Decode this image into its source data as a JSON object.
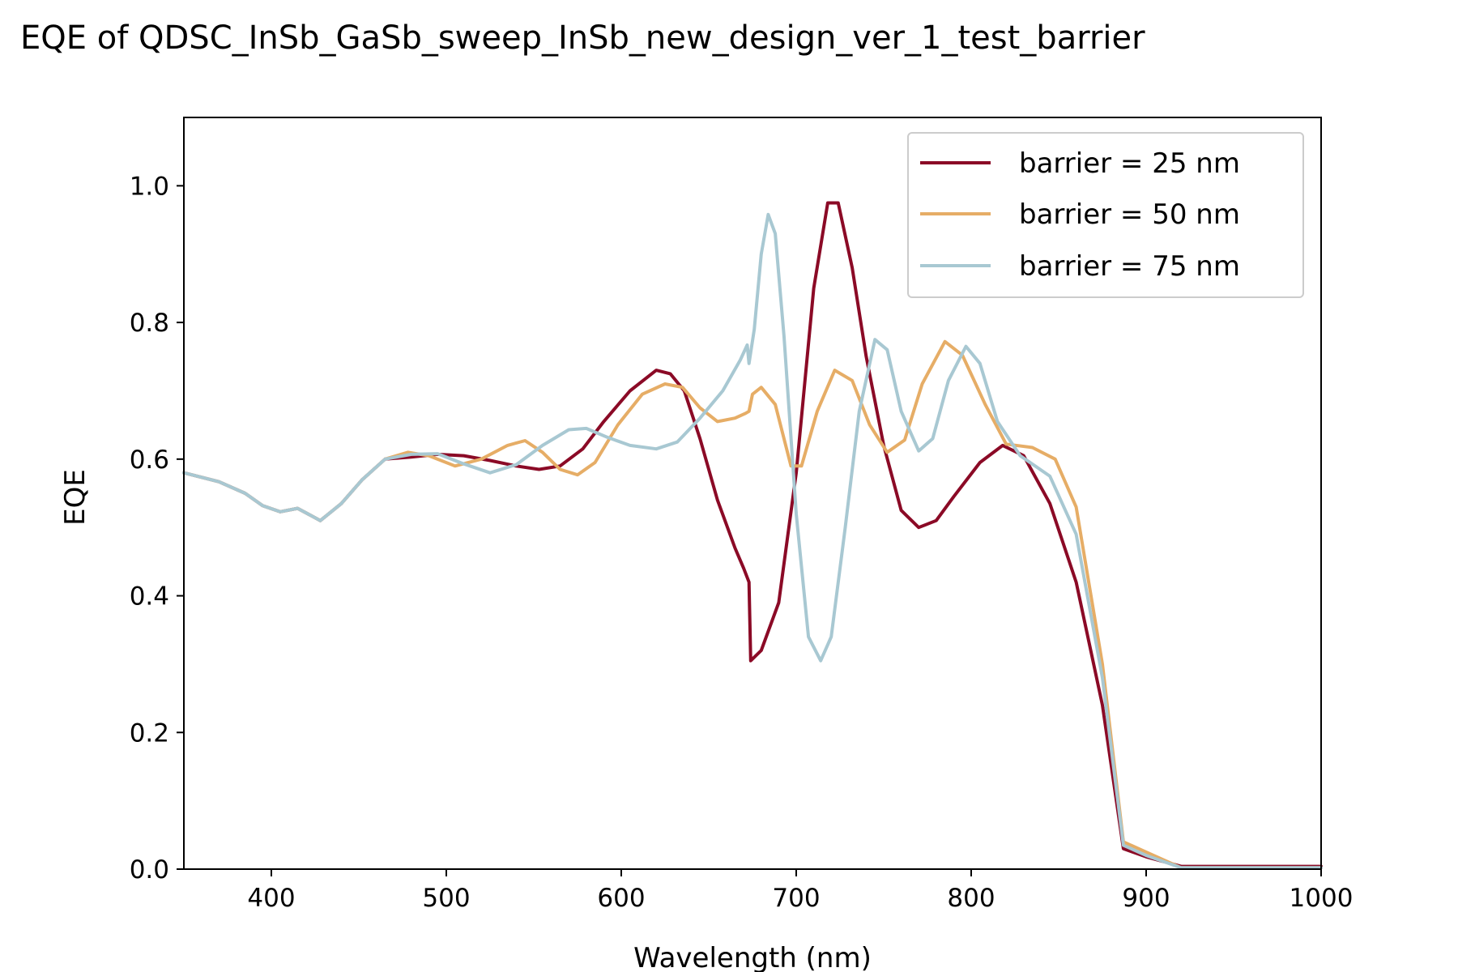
{
  "chart_data": {
    "type": "line",
    "title": "EQE of  QDSC_InSb_GaSb_sweep_InSb_new_design_ver_1_test_barrier",
    "xlabel": "Wavelength (nm)",
    "ylabel": "EQE",
    "xlim": [
      350,
      1000
    ],
    "ylim": [
      0,
      1.1
    ],
    "xticks": [
      400,
      500,
      600,
      700,
      800,
      900,
      1000
    ],
    "xtick_labels": [
      "400",
      "500",
      "600",
      "700",
      "800",
      "900",
      "1000"
    ],
    "yticks": [
      0,
      0.2,
      0.4,
      0.6,
      0.8,
      1.0
    ],
    "ytick_labels": [
      "0.0",
      "0.2",
      "0.4",
      "0.6",
      "0.8",
      "1.0"
    ],
    "grid": false,
    "legend_position": "top-right",
    "series": [
      {
        "name": "barrier = 25 nm",
        "color": "#8b0a26",
        "points": [
          [
            350,
            0.58
          ],
          [
            370,
            0.567
          ],
          [
            385,
            0.55
          ],
          [
            395,
            0.532
          ],
          [
            405,
            0.523
          ],
          [
            415,
            0.528
          ],
          [
            428,
            0.51
          ],
          [
            440,
            0.535
          ],
          [
            452,
            0.57
          ],
          [
            465,
            0.6
          ],
          [
            480,
            0.603
          ],
          [
            495,
            0.607
          ],
          [
            510,
            0.605
          ],
          [
            525,
            0.598
          ],
          [
            540,
            0.59
          ],
          [
            553,
            0.585
          ],
          [
            565,
            0.59
          ],
          [
            578,
            0.615
          ],
          [
            590,
            0.655
          ],
          [
            605,
            0.7
          ],
          [
            620,
            0.73
          ],
          [
            628,
            0.725
          ],
          [
            636,
            0.7
          ],
          [
            645,
            0.63
          ],
          [
            655,
            0.54
          ],
          [
            665,
            0.47
          ],
          [
            670,
            0.44
          ],
          [
            673,
            0.42
          ],
          [
            674,
            0.305
          ],
          [
            680,
            0.32
          ],
          [
            690,
            0.39
          ],
          [
            700,
            0.58
          ],
          [
            710,
            0.85
          ],
          [
            718,
            0.975
          ],
          [
            724,
            0.975
          ],
          [
            732,
            0.88
          ],
          [
            740,
            0.75
          ],
          [
            750,
            0.62
          ],
          [
            760,
            0.525
          ],
          [
            770,
            0.5
          ],
          [
            780,
            0.51
          ],
          [
            790,
            0.545
          ],
          [
            805,
            0.595
          ],
          [
            818,
            0.62
          ],
          [
            830,
            0.605
          ],
          [
            845,
            0.535
          ],
          [
            860,
            0.42
          ],
          [
            875,
            0.24
          ],
          [
            887,
            0.03
          ],
          [
            900,
            0.018
          ],
          [
            920,
            0.004
          ],
          [
            1000,
            0.004
          ]
        ]
      },
      {
        "name": "barrier = 50 nm",
        "color": "#e6ad66",
        "points": [
          [
            350,
            0.58
          ],
          [
            370,
            0.567
          ],
          [
            385,
            0.55
          ],
          [
            395,
            0.532
          ],
          [
            405,
            0.523
          ],
          [
            415,
            0.528
          ],
          [
            428,
            0.51
          ],
          [
            440,
            0.535
          ],
          [
            452,
            0.57
          ],
          [
            465,
            0.6
          ],
          [
            478,
            0.61
          ],
          [
            490,
            0.605
          ],
          [
            505,
            0.59
          ],
          [
            520,
            0.6
          ],
          [
            535,
            0.62
          ],
          [
            545,
            0.627
          ],
          [
            555,
            0.61
          ],
          [
            565,
            0.585
          ],
          [
            575,
            0.577
          ],
          [
            585,
            0.595
          ],
          [
            598,
            0.65
          ],
          [
            612,
            0.695
          ],
          [
            625,
            0.71
          ],
          [
            635,
            0.705
          ],
          [
            645,
            0.675
          ],
          [
            655,
            0.655
          ],
          [
            665,
            0.66
          ],
          [
            671,
            0.667
          ],
          [
            673,
            0.67
          ],
          [
            675,
            0.695
          ],
          [
            680,
            0.705
          ],
          [
            688,
            0.68
          ],
          [
            697,
            0.59
          ],
          [
            703,
            0.59
          ],
          [
            712,
            0.67
          ],
          [
            722,
            0.73
          ],
          [
            732,
            0.715
          ],
          [
            742,
            0.65
          ],
          [
            752,
            0.61
          ],
          [
            762,
            0.628
          ],
          [
            772,
            0.71
          ],
          [
            785,
            0.772
          ],
          [
            795,
            0.752
          ],
          [
            808,
            0.68
          ],
          [
            820,
            0.622
          ],
          [
            835,
            0.617
          ],
          [
            848,
            0.6
          ],
          [
            860,
            0.53
          ],
          [
            875,
            0.3
          ],
          [
            887,
            0.04
          ],
          [
            900,
            0.025
          ],
          [
            920,
            0.002
          ],
          [
            1000,
            0.002
          ]
        ]
      },
      {
        "name": "barrier = 75 nm",
        "color": "#a8c8d2",
        "points": [
          [
            350,
            0.58
          ],
          [
            370,
            0.567
          ],
          [
            385,
            0.55
          ],
          [
            395,
            0.532
          ],
          [
            405,
            0.523
          ],
          [
            415,
            0.528
          ],
          [
            428,
            0.51
          ],
          [
            440,
            0.535
          ],
          [
            452,
            0.57
          ],
          [
            465,
            0.6
          ],
          [
            480,
            0.607
          ],
          [
            495,
            0.608
          ],
          [
            510,
            0.593
          ],
          [
            525,
            0.58
          ],
          [
            540,
            0.592
          ],
          [
            555,
            0.62
          ],
          [
            570,
            0.643
          ],
          [
            580,
            0.645
          ],
          [
            592,
            0.632
          ],
          [
            605,
            0.62
          ],
          [
            620,
            0.615
          ],
          [
            632,
            0.625
          ],
          [
            645,
            0.66
          ],
          [
            658,
            0.7
          ],
          [
            668,
            0.745
          ],
          [
            672,
            0.767
          ],
          [
            673,
            0.74
          ],
          [
            676,
            0.79
          ],
          [
            680,
            0.9
          ],
          [
            684,
            0.958
          ],
          [
            688,
            0.93
          ],
          [
            693,
            0.78
          ],
          [
            700,
            0.52
          ],
          [
            707,
            0.34
          ],
          [
            714,
            0.305
          ],
          [
            720,
            0.34
          ],
          [
            728,
            0.5
          ],
          [
            736,
            0.67
          ],
          [
            745,
            0.775
          ],
          [
            752,
            0.76
          ],
          [
            760,
            0.67
          ],
          [
            770,
            0.612
          ],
          [
            778,
            0.63
          ],
          [
            787,
            0.715
          ],
          [
            797,
            0.765
          ],
          [
            805,
            0.74
          ],
          [
            815,
            0.655
          ],
          [
            828,
            0.605
          ],
          [
            845,
            0.575
          ],
          [
            860,
            0.49
          ],
          [
            875,
            0.28
          ],
          [
            887,
            0.035
          ],
          [
            900,
            0.02
          ],
          [
            920,
            0.002
          ],
          [
            1000,
            0.002
          ]
        ]
      }
    ]
  }
}
